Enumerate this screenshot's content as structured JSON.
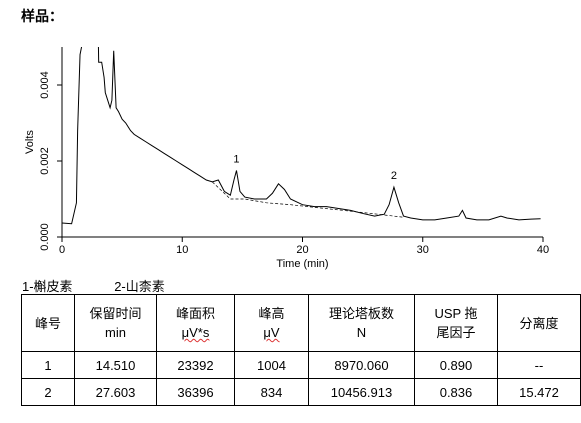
{
  "page": {
    "heading": "样品：",
    "legend": [
      "1-槲皮素",
      "2-山柰素"
    ]
  },
  "chart_data": {
    "type": "line",
    "ylabel": "Volts",
    "xlabel": "Time (min)",
    "xlim": [
      0,
      40
    ],
    "ylim": [
      0,
      0.005
    ],
    "x_ticks": [
      0,
      10,
      20,
      30,
      40
    ],
    "y_ticks": [
      0.0,
      0.002,
      0.004
    ],
    "y_tick_labels": [
      "0.000",
      "0.002",
      "0.004"
    ],
    "peak_labels": [
      {
        "label": "1",
        "x": 14.51,
        "y": 0.00175
      },
      {
        "label": "2",
        "x": 27.603,
        "y": 0.00131
      }
    ],
    "series": [
      {
        "values": [
          [
            0,
            0.00037
          ],
          [
            0.8,
            0.00035
          ],
          [
            1.2,
            0.0009
          ],
          [
            1.3,
            0.0028
          ],
          [
            1.5,
            0.0048
          ],
          [
            2.0,
            0.0056
          ],
          [
            2.6,
            0.0056
          ],
          [
            3.0,
            0.0056
          ],
          [
            3.05,
            0.0046
          ],
          [
            3.3,
            0.0046
          ],
          [
            3.5,
            0.0042
          ],
          [
            3.6,
            0.0038
          ],
          [
            3.8,
            0.0036
          ],
          [
            4.0,
            0.0034
          ],
          [
            4.15,
            0.0036
          ],
          [
            4.3,
            0.0049
          ],
          [
            4.5,
            0.0034
          ],
          [
            4.7,
            0.0033
          ],
          [
            5.0,
            0.0031
          ],
          [
            5.3,
            0.003
          ],
          [
            5.7,
            0.0028
          ],
          [
            6.0,
            0.0027
          ],
          [
            6.5,
            0.0026
          ],
          [
            7.0,
            0.0025
          ],
          [
            7.5,
            0.0024
          ],
          [
            8.0,
            0.0023
          ],
          [
            8.5,
            0.0022
          ],
          [
            9.0,
            0.0021
          ],
          [
            9.5,
            0.002
          ],
          [
            10.0,
            0.0019
          ],
          [
            10.5,
            0.0018
          ],
          [
            11.0,
            0.0017
          ],
          [
            11.5,
            0.0016
          ],
          [
            12.0,
            0.0015
          ],
          [
            12.5,
            0.00145
          ],
          [
            13.0,
            0.0015
          ],
          [
            13.5,
            0.0012
          ],
          [
            14.0,
            0.0011
          ],
          [
            14.3,
            0.0015
          ],
          [
            14.51,
            0.00175
          ],
          [
            14.8,
            0.0012
          ],
          [
            15.2,
            0.00105
          ],
          [
            16.0,
            0.001
          ],
          [
            17.0,
            0.001
          ],
          [
            17.5,
            0.00115
          ],
          [
            18.0,
            0.0014
          ],
          [
            18.5,
            0.00125
          ],
          [
            19.0,
            0.001
          ],
          [
            20.0,
            0.00085
          ],
          [
            21.0,
            0.0008
          ],
          [
            22.0,
            0.0008
          ],
          [
            23.0,
            0.00075
          ],
          [
            24.0,
            0.0007
          ],
          [
            25.0,
            0.00062
          ],
          [
            26.0,
            0.00055
          ],
          [
            26.8,
            0.0006
          ],
          [
            27.2,
            0.00085
          ],
          [
            27.603,
            0.00131
          ],
          [
            28.0,
            0.0009
          ],
          [
            28.4,
            0.00055
          ],
          [
            29.0,
            0.0005
          ],
          [
            30.0,
            0.00045
          ],
          [
            31.0,
            0.00045
          ],
          [
            32.0,
            0.0005
          ],
          [
            33.0,
            0.00055
          ],
          [
            33.3,
            0.0007
          ],
          [
            33.6,
            0.0005
          ],
          [
            34.5,
            0.00045
          ],
          [
            35.5,
            0.00045
          ],
          [
            36.5,
            0.00055
          ],
          [
            37.0,
            0.0005
          ],
          [
            38.0,
            0.00045
          ],
          [
            39.0,
            0.00047
          ],
          [
            39.8,
            0.00048
          ]
        ]
      }
    ]
  },
  "table": {
    "headers": [
      [
        "峰号"
      ],
      [
        "保留时间",
        "min"
      ],
      [
        "峰面积",
        "μV*s"
      ],
      [
        "峰高",
        "μV"
      ],
      [
        "理论塔板数",
        "N"
      ],
      [
        "USP 拖",
        "尾因子"
      ],
      [
        "分离度"
      ]
    ],
    "rows": [
      [
        "1",
        "14.510",
        "23392",
        "1004",
        "8970.060",
        "0.890",
        "--"
      ],
      [
        "2",
        "27.603",
        "36396",
        "834",
        "10456.913",
        "0.836",
        "15.472"
      ]
    ]
  }
}
